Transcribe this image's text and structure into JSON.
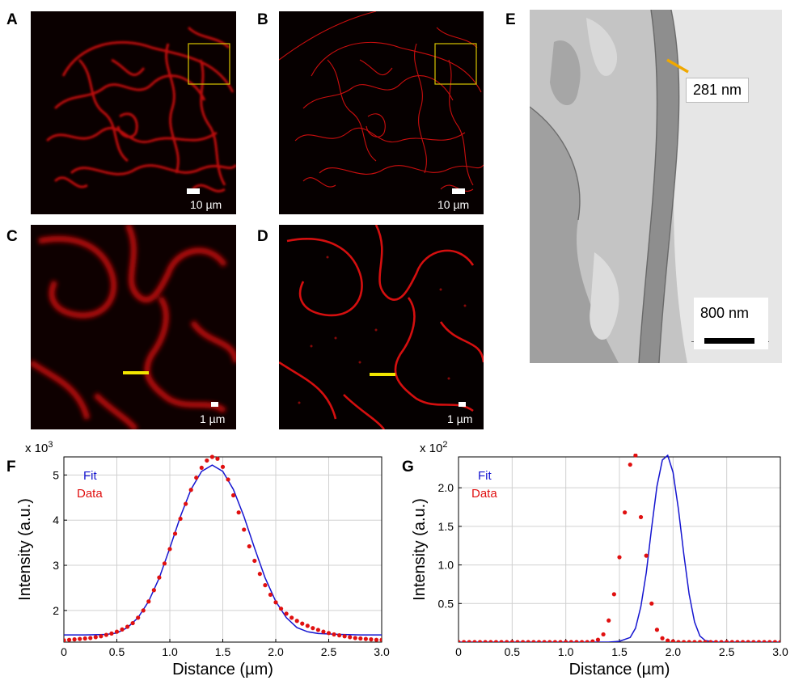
{
  "panels": {
    "A": {
      "letter": "A",
      "scale_label": "10 µm"
    },
    "B": {
      "letter": "B",
      "scale_label": "10 µm"
    },
    "C": {
      "letter": "C",
      "scale_label": "1 µm"
    },
    "D": {
      "letter": "D",
      "scale_label": "1 µm"
    },
    "E": {
      "letter": "E",
      "measure_label": "281 nm",
      "scale_label": "800 nm"
    },
    "F": {
      "letter": "F"
    },
    "G": {
      "letter": "G"
    }
  },
  "colors": {
    "fluorescence": "#e01010",
    "highlight_box": "#d8c400",
    "line_profile": "#f2e600",
    "fit_line": "#1515d0",
    "data_points": "#e01010",
    "em_measure": "#f0a800"
  },
  "chart_data": [
    {
      "type": "scatter",
      "panel": "F",
      "multiplier_label": "x 10",
      "multiplier_exp": "3",
      "xlabel": "Distance (µm)",
      "ylabel": "Intensity (a.u.)",
      "xlim": [
        0,
        3.0
      ],
      "ylim": [
        1.3,
        5.4
      ],
      "xticks": [
        "0",
        "0.5",
        "1.0",
        "1.5",
        "2.0",
        "2.5",
        "3.0"
      ],
      "xtick_values": [
        0,
        0.5,
        1.0,
        1.5,
        2.0,
        2.5,
        3.0
      ],
      "yticks": [
        "2",
        "3",
        "4",
        "5"
      ],
      "ytick_values": [
        2,
        3,
        4,
        5
      ],
      "grid": true,
      "legend_position": "top-left",
      "series": [
        {
          "name": "Fit",
          "kind": "line",
          "color": "#1515d0",
          "x": [
            0.0,
            0.2,
            0.4,
            0.5,
            0.6,
            0.7,
            0.8,
            0.9,
            1.0,
            1.1,
            1.2,
            1.3,
            1.4,
            1.5,
            1.6,
            1.7,
            1.8,
            1.9,
            2.0,
            2.1,
            2.2,
            2.3,
            2.4,
            2.6,
            2.8,
            3.0
          ],
          "y": [
            1.46,
            1.46,
            1.47,
            1.5,
            1.62,
            1.84,
            2.2,
            2.72,
            3.38,
            4.08,
            4.68,
            5.08,
            5.22,
            5.08,
            4.68,
            4.08,
            3.38,
            2.72,
            2.2,
            1.84,
            1.62,
            1.53,
            1.49,
            1.47,
            1.46,
            1.46
          ]
        },
        {
          "name": "Data",
          "kind": "points",
          "color": "#e01010",
          "x": [
            0.0,
            0.05,
            0.1,
            0.15,
            0.2,
            0.25,
            0.3,
            0.35,
            0.4,
            0.45,
            0.5,
            0.55,
            0.6,
            0.65,
            0.7,
            0.75,
            0.8,
            0.85,
            0.9,
            0.95,
            1.0,
            1.05,
            1.1,
            1.15,
            1.2,
            1.25,
            1.3,
            1.35,
            1.4,
            1.45,
            1.5,
            1.55,
            1.6,
            1.65,
            1.7,
            1.75,
            1.8,
            1.85,
            1.9,
            1.95,
            2.0,
            2.05,
            2.1,
            2.15,
            2.2,
            2.25,
            2.3,
            2.35,
            2.4,
            2.45,
            2.5,
            2.55,
            2.6,
            2.65,
            2.7,
            2.75,
            2.8,
            2.85,
            2.9,
            2.95,
            3.0
          ],
          "y": [
            1.34,
            1.35,
            1.36,
            1.37,
            1.38,
            1.39,
            1.41,
            1.43,
            1.46,
            1.49,
            1.53,
            1.58,
            1.64,
            1.72,
            1.84,
            2.0,
            2.2,
            2.45,
            2.73,
            3.04,
            3.36,
            3.7,
            4.03,
            4.36,
            4.67,
            4.94,
            5.16,
            5.32,
            5.4,
            5.36,
            5.18,
            4.9,
            4.55,
            4.17,
            3.79,
            3.42,
            3.1,
            2.81,
            2.56,
            2.35,
            2.18,
            2.04,
            1.93,
            1.84,
            1.77,
            1.71,
            1.66,
            1.61,
            1.57,
            1.53,
            1.5,
            1.47,
            1.45,
            1.43,
            1.41,
            1.39,
            1.38,
            1.37,
            1.36,
            1.35,
            1.35
          ]
        }
      ]
    },
    {
      "type": "scatter",
      "panel": "G",
      "multiplier_label": "x 10",
      "multiplier_exp": "2",
      "xlabel": "Distance (µm)",
      "ylabel": "Intensity (a.u.)",
      "xlim": [
        0,
        3.0
      ],
      "ylim": [
        0,
        2.4
      ],
      "xticks": [
        "0",
        "0.5",
        "1.0",
        "1.5",
        "2.0",
        "2.5",
        "3.0"
      ],
      "xtick_values": [
        0,
        0.5,
        1.0,
        1.5,
        2.0,
        2.5,
        3.0
      ],
      "yticks": [
        "0.5",
        "1.0",
        "1.5",
        "2.0"
      ],
      "ytick_values": [
        0.5,
        1.0,
        1.5,
        2.0
      ],
      "grid": true,
      "legend_position": "top-left",
      "series": [
        {
          "name": "Fit",
          "kind": "line",
          "color": "#1515d0",
          "x": [
            0.0,
            1.2,
            1.4,
            1.5,
            1.6,
            1.65,
            1.7,
            1.75,
            1.8,
            1.85,
            1.9,
            1.95,
            2.0,
            2.05,
            2.1,
            2.15,
            2.2,
            2.25,
            2.3,
            2.4,
            2.6,
            3.0
          ],
          "y": [
            0,
            0,
            0.0,
            0.01,
            0.06,
            0.18,
            0.46,
            0.9,
            1.48,
            2.02,
            2.36,
            2.42,
            2.2,
            1.72,
            1.14,
            0.62,
            0.26,
            0.08,
            0.02,
            0.0,
            0,
            0
          ]
        },
        {
          "name": "Data",
          "kind": "points",
          "color": "#e01010",
          "x": [
            0.0,
            0.05,
            0.1,
            0.15,
            0.2,
            0.25,
            0.3,
            0.35,
            0.4,
            0.45,
            0.5,
            0.55,
            0.6,
            0.65,
            0.7,
            0.75,
            0.8,
            0.85,
            0.9,
            0.95,
            1.0,
            1.05,
            1.1,
            1.15,
            1.2,
            1.25,
            1.3,
            1.35,
            1.4,
            1.45,
            1.5,
            1.55,
            1.6,
            1.65,
            1.7,
            1.75,
            1.8,
            1.85,
            1.9,
            1.95,
            2.0,
            2.05,
            2.1,
            2.15,
            2.2,
            2.25,
            2.3,
            2.35,
            2.4,
            2.45,
            2.5,
            2.55,
            2.6,
            2.65,
            2.7,
            2.75,
            2.8,
            2.85,
            2.9,
            2.95,
            3.0
          ],
          "y": [
            0,
            0,
            0,
            0,
            0,
            0,
            0,
            0,
            0,
            0,
            0,
            0,
            0,
            0,
            0,
            0,
            0,
            0,
            0,
            0,
            0,
            0,
            0,
            0,
            0,
            0.01,
            0.03,
            0.1,
            0.28,
            0.62,
            1.1,
            1.68,
            2.3,
            2.42,
            1.62,
            1.12,
            0.5,
            0.16,
            0.05,
            0.02,
            0.01,
            0,
            0,
            0,
            0,
            0,
            0,
            0,
            0,
            0,
            0,
            0,
            0,
            0,
            0,
            0,
            0,
            0,
            0,
            0,
            0
          ]
        }
      ]
    }
  ]
}
